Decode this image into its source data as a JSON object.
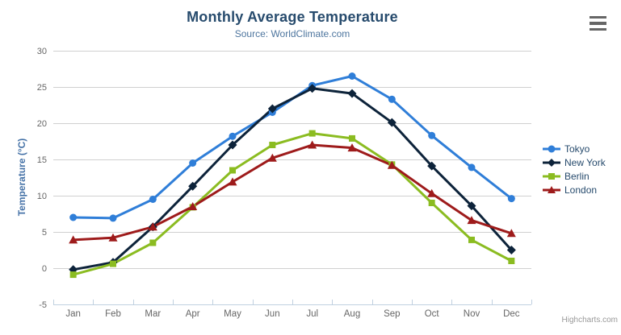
{
  "header": {
    "title": "Monthly Average Temperature",
    "subtitle": "Source: WorldClimate.com"
  },
  "credit_label": "Highcharts.com",
  "chart_data": {
    "type": "line",
    "title": "Monthly Average Temperature",
    "subtitle": "Source: WorldClimate.com",
    "categories": [
      "Jan",
      "Feb",
      "Mar",
      "Apr",
      "May",
      "Jun",
      "Jul",
      "Aug",
      "Sep",
      "Oct",
      "Nov",
      "Dec"
    ],
    "series": [
      {
        "name": "Tokyo",
        "color": "#2f7ed8",
        "marker": "circle",
        "values": [
          7.0,
          6.9,
          9.5,
          14.5,
          18.2,
          21.5,
          25.2,
          26.5,
          23.3,
          18.3,
          13.9,
          9.6
        ]
      },
      {
        "name": "New York",
        "color": "#0d233a",
        "marker": "diamond",
        "values": [
          -0.2,
          0.8,
          5.7,
          11.3,
          17.0,
          22.0,
          24.8,
          24.1,
          20.1,
          14.1,
          8.6,
          2.5
        ]
      },
      {
        "name": "Berlin",
        "color": "#8bbc21",
        "marker": "square",
        "values": [
          -0.9,
          0.6,
          3.5,
          8.4,
          13.5,
          17.0,
          18.6,
          17.9,
          14.3,
          9.0,
          3.9,
          1.0
        ]
      },
      {
        "name": "London",
        "color": "#9e1b1b",
        "marker": "triangle",
        "values": [
          3.9,
          4.2,
          5.7,
          8.5,
          11.9,
          15.2,
          17.0,
          16.6,
          14.2,
          10.3,
          6.6,
          4.8
        ]
      }
    ],
    "xlabel": "",
    "ylabel": "Temperature (°C)",
    "ylim": [
      -5,
      30
    ],
    "ytick_step": 5,
    "grid": true,
    "legend_position": "right"
  },
  "colors": {
    "title": "#274b6d",
    "subtitle": "#4d759e",
    "axis_label": "#666666",
    "axis_title": "#4572a7",
    "gridline": "#d0d0d0",
    "xaxis_line": "#c0d0e0",
    "legend_text": "#274b6d",
    "credit": "#999999",
    "menu_icon": "#666666"
  }
}
